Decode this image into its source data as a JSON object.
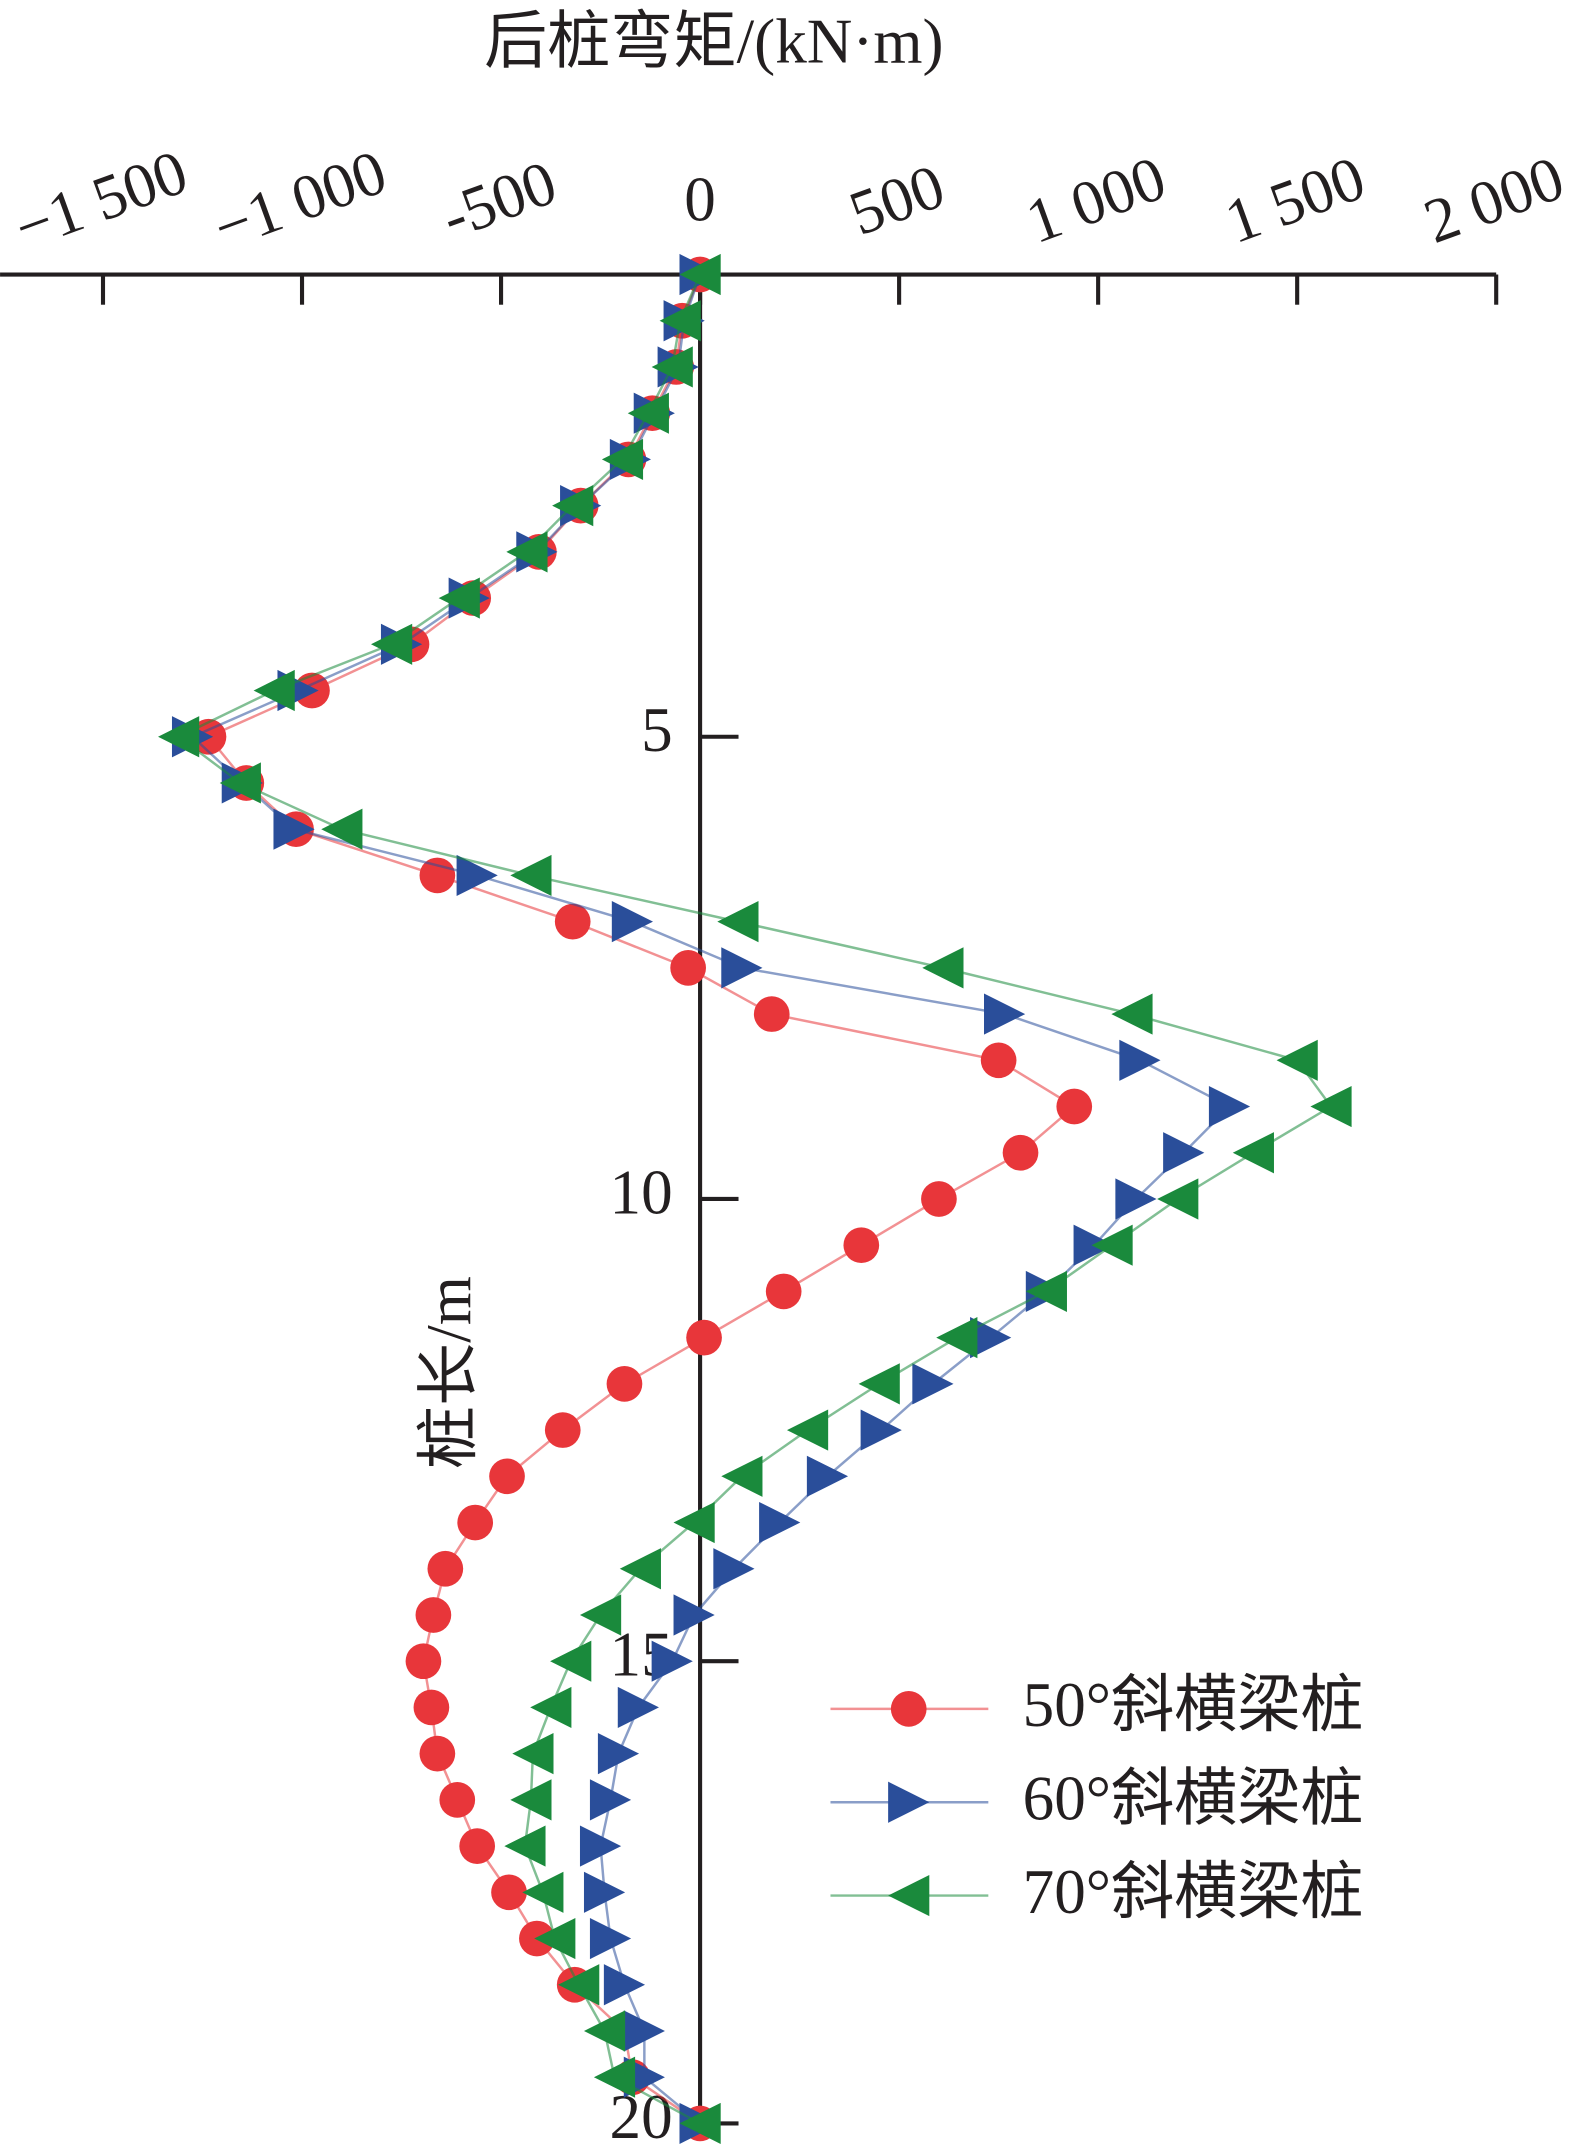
{
  "chart_data": {
    "type": "line",
    "x_label": "后桩弯矩/(kN·m)",
    "y_label": "桩长/m",
    "x": [
      0,
      0.5,
      1,
      1.5,
      2,
      2.5,
      3,
      3.5,
      4,
      4.5,
      5,
      5.5,
      6,
      6.5,
      7,
      7.5,
      8,
      8.5,
      9,
      9.5,
      10,
      10.5,
      11,
      11.5,
      12,
      12.5,
      13,
      13.5,
      14,
      14.5,
      15,
      15.5,
      16,
      16.5,
      17,
      17.5,
      18,
      18.5,
      19,
      19.5,
      20
    ],
    "series": [
      {
        "name": "50°斜横梁桩",
        "color": "#e8363a",
        "marker": "circle",
        "values": [
          0,
          -45,
          -60,
          -120,
          -180,
          -300,
          -405,
          -570,
          -725,
          -975,
          -1235,
          -1140,
          -1015,
          -660,
          -320,
          -30,
          180,
          750,
          940,
          805,
          600,
          405,
          210,
          10,
          -190,
          -345,
          -485,
          -565,
          -640,
          -670,
          -695,
          -675,
          -660,
          -610,
          -560,
          -480,
          -410,
          -315,
          -190,
          -170,
          0
        ]
      },
      {
        "name": "60°斜横梁桩",
        "color": "#2a4e9a",
        "marker": "triangle-right",
        "values": [
          0,
          -40,
          -55,
          -115,
          -175,
          -300,
          -410,
          -580,
          -750,
          -1010,
          -1275,
          -1150,
          -1020,
          -560,
          -170,
          105,
          765,
          1105,
          1330,
          1215,
          1095,
          990,
          870,
          730,
          585,
          455,
          320,
          200,
          85,
          -15,
          -70,
          -155,
          -205,
          -225,
          -250,
          -240,
          -225,
          -190,
          -140,
          -140,
          0
        ]
      },
      {
        "name": "70°斜横梁桩",
        "color": "#1a8a3c",
        "marker": "triangle-left",
        "values": [
          0,
          -50,
          -70,
          -130,
          -195,
          -320,
          -435,
          -605,
          -775,
          -1070,
          -1310,
          -1155,
          -900,
          -425,
          95,
          610,
          1085,
          1500,
          1585,
          1390,
          1200,
          1035,
          870,
          645,
          450,
          270,
          105,
          -15,
          -150,
          -250,
          -325,
          -375,
          -420,
          -425,
          -440,
          -395,
          -365,
          -305,
          -240,
          -215,
          0
        ]
      }
    ],
    "xlim": [
      -1750,
      2000
    ],
    "xticks": [
      {
        "value": -1500,
        "label": "−1 500"
      },
      {
        "value": -1000,
        "label": "−1 000"
      },
      -500,
      0,
      500,
      {
        "value": 1000,
        "label": "1 000"
      },
      {
        "value": 1500,
        "label": "1 500"
      },
      {
        "value": 2000,
        "label": "2 000"
      }
    ],
    "ylim": [
      0,
      20
    ],
    "yticks": [
      5,
      10,
      15,
      20
    ],
    "legend": "lower right"
  }
}
